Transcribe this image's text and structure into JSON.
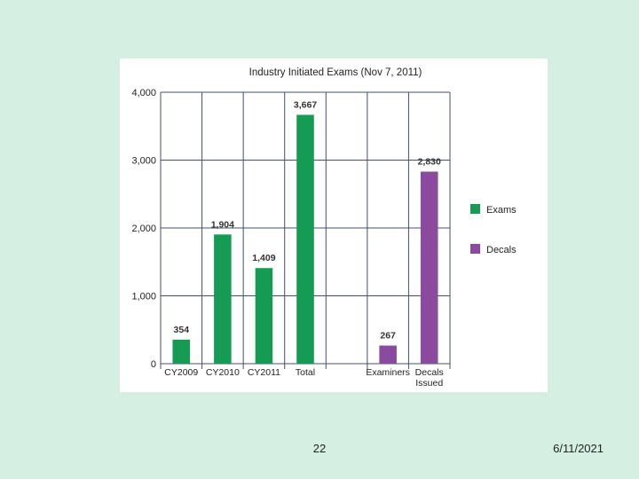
{
  "chart_data": {
    "type": "bar",
    "title": "Industry Initiated Exams (Nov 7, 2011)",
    "xlabel": "",
    "ylabel": "",
    "ylim": [
      0,
      4000
    ],
    "yticks": [
      0,
      1000,
      2000,
      3000,
      4000
    ],
    "ytick_labels": [
      "0",
      "1,000",
      "2,000",
      "3,000",
      "4,000"
    ],
    "grid": true,
    "legend_position": "right",
    "categories": [
      "CY2009",
      "CY2010",
      "CY2011",
      "Total",
      "",
      "Examiners",
      "Decals Issued"
    ],
    "series": [
      {
        "name": "Exams",
        "color": "#159b53",
        "values": [
          354,
          1904,
          1409,
          3667,
          null,
          null,
          null
        ]
      },
      {
        "name": "Decals",
        "color": "#8a4a9d",
        "values": [
          null,
          null,
          null,
          null,
          null,
          267,
          2830
        ]
      }
    ],
    "data_labels": [
      "354",
      "1,904",
      "1,409",
      "3,667",
      "",
      "267",
      "2,830"
    ]
  },
  "footer": {
    "page_number": "22",
    "date": "6/11/2021"
  }
}
